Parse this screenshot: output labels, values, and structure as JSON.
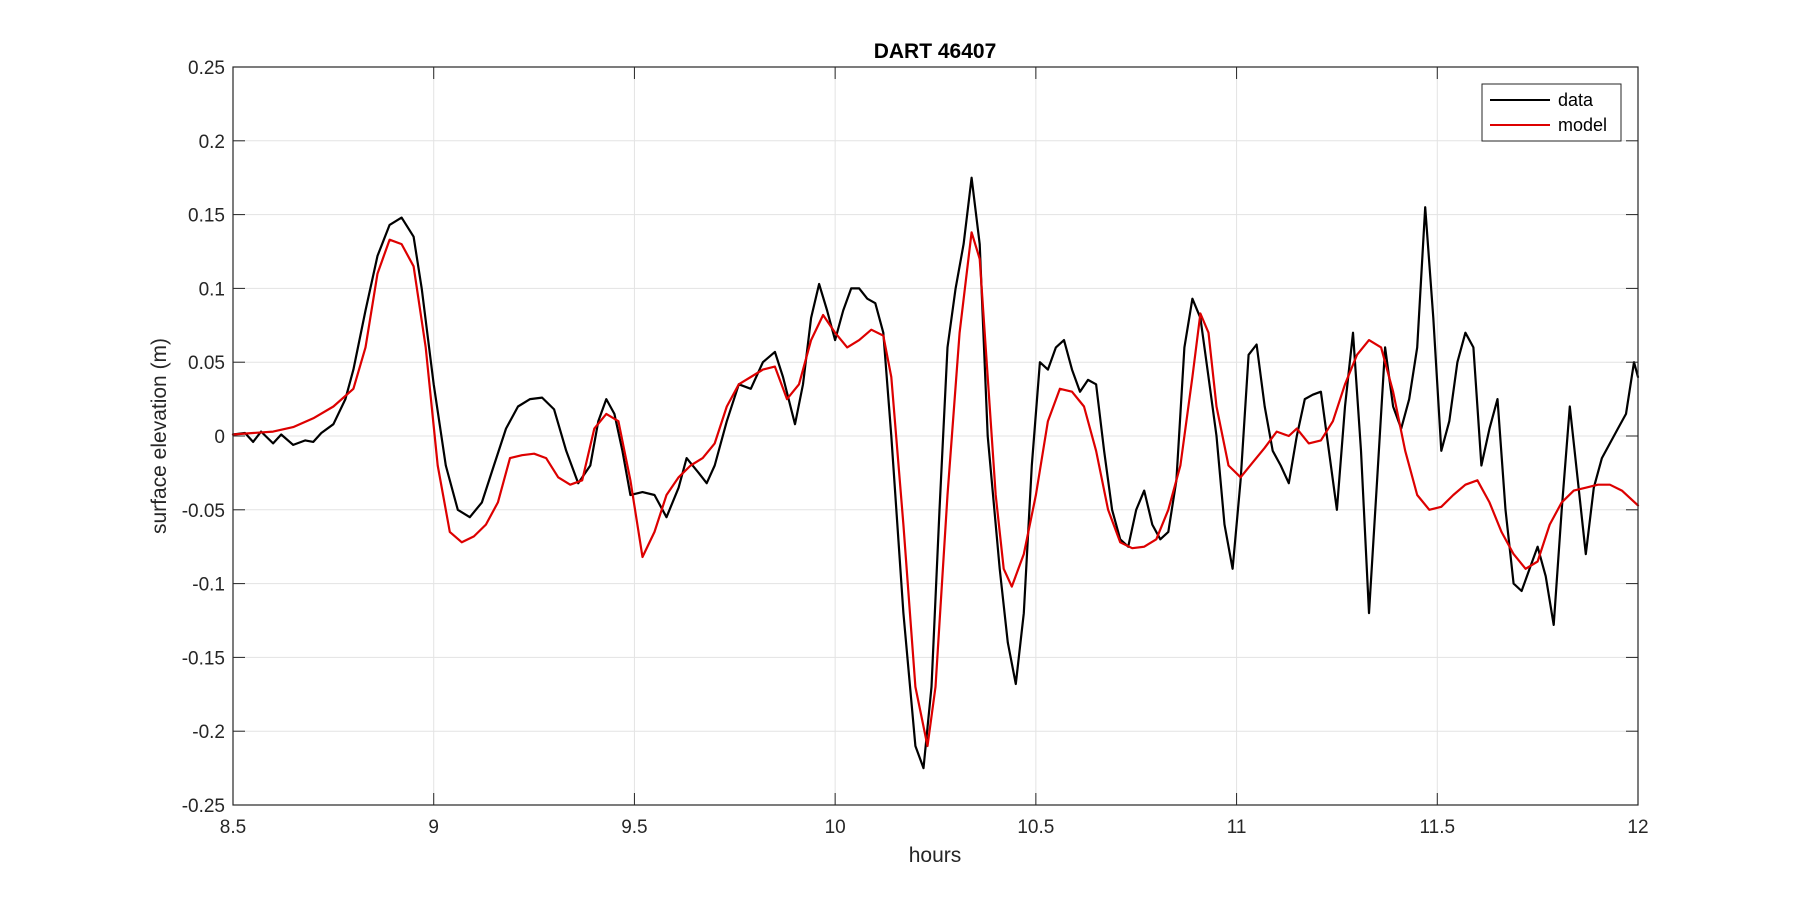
{
  "chart_data": {
    "type": "line",
    "title": "DART 46407",
    "xlabel": "hours",
    "ylabel": "surface elevation (m)",
    "xlim": [
      8.5,
      12
    ],
    "ylim": [
      -0.25,
      0.25
    ],
    "xticks": [
      8.5,
      9,
      9.5,
      10,
      10.5,
      11,
      11.5,
      12
    ],
    "xtick_labels": [
      "8.5",
      "9",
      "9.5",
      "10",
      "10.5",
      "11",
      "11.5",
      "12"
    ],
    "yticks": [
      0.25,
      0.2,
      0.15,
      0.1,
      0.05,
      0,
      -0.05,
      -0.1,
      -0.15,
      -0.2,
      -0.25
    ],
    "ytick_labels": [
      "0.25",
      "0.2",
      "0.15",
      "0.1",
      "0.05",
      "0",
      "-0.05",
      "-0.1",
      "-0.15",
      "-0.2",
      "-0.25"
    ],
    "grid": true,
    "legend_position": "top-right",
    "series": [
      {
        "name": "data",
        "color": "#000000",
        "points": [
          [
            8.5,
            0.001
          ],
          [
            8.53,
            0.002
          ],
          [
            8.55,
            -0.004
          ],
          [
            8.57,
            0.003
          ],
          [
            8.6,
            -0.005
          ],
          [
            8.62,
            0.001
          ],
          [
            8.65,
            -0.006
          ],
          [
            8.68,
            -0.003
          ],
          [
            8.7,
            -0.004
          ],
          [
            8.72,
            0.002
          ],
          [
            8.75,
            0.008
          ],
          [
            8.78,
            0.025
          ],
          [
            8.8,
            0.045
          ],
          [
            8.83,
            0.085
          ],
          [
            8.86,
            0.122
          ],
          [
            8.89,
            0.143
          ],
          [
            8.92,
            0.148
          ],
          [
            8.95,
            0.135
          ],
          [
            8.97,
            0.1
          ],
          [
            9.0,
            0.035
          ],
          [
            9.03,
            -0.02
          ],
          [
            9.06,
            -0.05
          ],
          [
            9.09,
            -0.055
          ],
          [
            9.12,
            -0.045
          ],
          [
            9.15,
            -0.02
          ],
          [
            9.18,
            0.005
          ],
          [
            9.21,
            0.02
          ],
          [
            9.24,
            0.025
          ],
          [
            9.27,
            0.026
          ],
          [
            9.3,
            0.018
          ],
          [
            9.33,
            -0.01
          ],
          [
            9.36,
            -0.032
          ],
          [
            9.39,
            -0.02
          ],
          [
            9.41,
            0.01
          ],
          [
            9.43,
            0.025
          ],
          [
            9.45,
            0.015
          ],
          [
            9.47,
            -0.01
          ],
          [
            9.49,
            -0.04
          ],
          [
            9.52,
            -0.038
          ],
          [
            9.55,
            -0.04
          ],
          [
            9.58,
            -0.055
          ],
          [
            9.61,
            -0.035
          ],
          [
            9.63,
            -0.015
          ],
          [
            9.66,
            -0.025
          ],
          [
            9.68,
            -0.032
          ],
          [
            9.7,
            -0.02
          ],
          [
            9.73,
            0.01
          ],
          [
            9.76,
            0.035
          ],
          [
            9.79,
            0.032
          ],
          [
            9.82,
            0.05
          ],
          [
            9.85,
            0.057
          ],
          [
            9.87,
            0.04
          ],
          [
            9.9,
            0.008
          ],
          [
            9.92,
            0.035
          ],
          [
            9.94,
            0.08
          ],
          [
            9.96,
            0.103
          ],
          [
            9.98,
            0.085
          ],
          [
            10.0,
            0.065
          ],
          [
            10.02,
            0.085
          ],
          [
            10.04,
            0.1
          ],
          [
            10.06,
            0.1
          ],
          [
            10.08,
            0.093
          ],
          [
            10.1,
            0.09
          ],
          [
            10.12,
            0.07
          ],
          [
            10.14,
            0.0
          ],
          [
            10.17,
            -0.12
          ],
          [
            10.2,
            -0.21
          ],
          [
            10.22,
            -0.225
          ],
          [
            10.24,
            -0.17
          ],
          [
            10.26,
            -0.05
          ],
          [
            10.28,
            0.06
          ],
          [
            10.3,
            0.1
          ],
          [
            10.32,
            0.13
          ],
          [
            10.34,
            0.175
          ],
          [
            10.36,
            0.13
          ],
          [
            10.38,
            0.0
          ],
          [
            10.41,
            -0.09
          ],
          [
            10.43,
            -0.14
          ],
          [
            10.45,
            -0.168
          ],
          [
            10.47,
            -0.12
          ],
          [
            10.49,
            -0.02
          ],
          [
            10.51,
            0.05
          ],
          [
            10.53,
            0.045
          ],
          [
            10.55,
            0.06
          ],
          [
            10.57,
            0.065
          ],
          [
            10.59,
            0.045
          ],
          [
            10.61,
            0.03
          ],
          [
            10.63,
            0.038
          ],
          [
            10.65,
            0.035
          ],
          [
            10.67,
            -0.01
          ],
          [
            10.69,
            -0.05
          ],
          [
            10.71,
            -0.07
          ],
          [
            10.73,
            -0.075
          ],
          [
            10.75,
            -0.05
          ],
          [
            10.77,
            -0.037
          ],
          [
            10.79,
            -0.06
          ],
          [
            10.81,
            -0.07
          ],
          [
            10.83,
            -0.065
          ],
          [
            10.85,
            -0.03
          ],
          [
            10.87,
            0.06
          ],
          [
            10.89,
            0.093
          ],
          [
            10.91,
            0.08
          ],
          [
            10.93,
            0.04
          ],
          [
            10.95,
            0.0
          ],
          [
            10.97,
            -0.06
          ],
          [
            10.99,
            -0.09
          ],
          [
            11.01,
            -0.03
          ],
          [
            11.03,
            0.055
          ],
          [
            11.05,
            0.062
          ],
          [
            11.07,
            0.02
          ],
          [
            11.09,
            -0.01
          ],
          [
            11.11,
            -0.02
          ],
          [
            11.13,
            -0.032
          ],
          [
            11.15,
            0.0
          ],
          [
            11.17,
            0.025
          ],
          [
            11.19,
            0.028
          ],
          [
            11.21,
            0.03
          ],
          [
            11.23,
            -0.01
          ],
          [
            11.25,
            -0.05
          ],
          [
            11.27,
            0.02
          ],
          [
            11.29,
            0.07
          ],
          [
            11.31,
            -0.01
          ],
          [
            11.33,
            -0.12
          ],
          [
            11.35,
            -0.03
          ],
          [
            11.37,
            0.06
          ],
          [
            11.39,
            0.02
          ],
          [
            11.41,
            0.005
          ],
          [
            11.43,
            0.025
          ],
          [
            11.45,
            0.06
          ],
          [
            11.47,
            0.155
          ],
          [
            11.49,
            0.08
          ],
          [
            11.51,
            -0.01
          ],
          [
            11.53,
            0.01
          ],
          [
            11.55,
            0.05
          ],
          [
            11.57,
            0.07
          ],
          [
            11.59,
            0.06
          ],
          [
            11.61,
            -0.02
          ],
          [
            11.63,
            0.005
          ],
          [
            11.65,
            0.025
          ],
          [
            11.67,
            -0.05
          ],
          [
            11.69,
            -0.1
          ],
          [
            11.71,
            -0.105
          ],
          [
            11.73,
            -0.09
          ],
          [
            11.75,
            -0.075
          ],
          [
            11.77,
            -0.095
          ],
          [
            11.79,
            -0.128
          ],
          [
            11.81,
            -0.05
          ],
          [
            11.83,
            0.02
          ],
          [
            11.85,
            -0.03
          ],
          [
            11.87,
            -0.08
          ],
          [
            11.89,
            -0.035
          ],
          [
            11.91,
            -0.015
          ],
          [
            11.93,
            -0.005
          ],
          [
            11.95,
            0.005
          ],
          [
            11.97,
            0.015
          ],
          [
            11.99,
            0.05
          ],
          [
            12.0,
            0.04
          ]
        ]
      },
      {
        "name": "model",
        "color": "#dd0000",
        "points": [
          [
            8.5,
            0.001
          ],
          [
            8.55,
            0.002
          ],
          [
            8.6,
            0.003
          ],
          [
            8.65,
            0.006
          ],
          [
            8.7,
            0.012
          ],
          [
            8.75,
            0.02
          ],
          [
            8.8,
            0.032
          ],
          [
            8.83,
            0.06
          ],
          [
            8.86,
            0.11
          ],
          [
            8.89,
            0.133
          ],
          [
            8.92,
            0.13
          ],
          [
            8.95,
            0.115
          ],
          [
            8.98,
            0.06
          ],
          [
            9.01,
            -0.02
          ],
          [
            9.04,
            -0.065
          ],
          [
            9.07,
            -0.072
          ],
          [
            9.1,
            -0.068
          ],
          [
            9.13,
            -0.06
          ],
          [
            9.16,
            -0.045
          ],
          [
            9.19,
            -0.015
          ],
          [
            9.22,
            -0.013
          ],
          [
            9.25,
            -0.012
          ],
          [
            9.28,
            -0.015
          ],
          [
            9.31,
            -0.028
          ],
          [
            9.34,
            -0.033
          ],
          [
            9.37,
            -0.03
          ],
          [
            9.4,
            0.005
          ],
          [
            9.43,
            0.015
          ],
          [
            9.46,
            0.01
          ],
          [
            9.49,
            -0.03
          ],
          [
            9.52,
            -0.082
          ],
          [
            9.55,
            -0.065
          ],
          [
            9.58,
            -0.04
          ],
          [
            9.61,
            -0.028
          ],
          [
            9.64,
            -0.02
          ],
          [
            9.67,
            -0.015
          ],
          [
            9.7,
            -0.005
          ],
          [
            9.73,
            0.02
          ],
          [
            9.76,
            0.035
          ],
          [
            9.79,
            0.04
          ],
          [
            9.82,
            0.045
          ],
          [
            9.85,
            0.047
          ],
          [
            9.88,
            0.025
          ],
          [
            9.91,
            0.035
          ],
          [
            9.94,
            0.065
          ],
          [
            9.97,
            0.082
          ],
          [
            10.0,
            0.07
          ],
          [
            10.03,
            0.06
          ],
          [
            10.06,
            0.065
          ],
          [
            10.09,
            0.072
          ],
          [
            10.12,
            0.068
          ],
          [
            10.14,
            0.04
          ],
          [
            10.17,
            -0.06
          ],
          [
            10.2,
            -0.17
          ],
          [
            10.23,
            -0.21
          ],
          [
            10.25,
            -0.17
          ],
          [
            10.28,
            -0.04
          ],
          [
            10.31,
            0.07
          ],
          [
            10.34,
            0.138
          ],
          [
            10.36,
            0.12
          ],
          [
            10.38,
            0.04
          ],
          [
            10.4,
            -0.04
          ],
          [
            10.42,
            -0.09
          ],
          [
            10.44,
            -0.102
          ],
          [
            10.47,
            -0.08
          ],
          [
            10.5,
            -0.04
          ],
          [
            10.53,
            0.01
          ],
          [
            10.56,
            0.032
          ],
          [
            10.59,
            0.03
          ],
          [
            10.62,
            0.02
          ],
          [
            10.65,
            -0.01
          ],
          [
            10.68,
            -0.05
          ],
          [
            10.71,
            -0.072
          ],
          [
            10.74,
            -0.076
          ],
          [
            10.77,
            -0.075
          ],
          [
            10.8,
            -0.07
          ],
          [
            10.83,
            -0.05
          ],
          [
            10.86,
            -0.02
          ],
          [
            10.89,
            0.04
          ],
          [
            10.91,
            0.083
          ],
          [
            10.93,
            0.07
          ],
          [
            10.95,
            0.02
          ],
          [
            10.98,
            -0.02
          ],
          [
            11.01,
            -0.028
          ],
          [
            11.04,
            -0.018
          ],
          [
            11.07,
            -0.008
          ],
          [
            11.1,
            0.003
          ],
          [
            11.13,
            0.0
          ],
          [
            11.15,
            0.005
          ],
          [
            11.18,
            -0.005
          ],
          [
            11.21,
            -0.003
          ],
          [
            11.24,
            0.01
          ],
          [
            11.27,
            0.035
          ],
          [
            11.3,
            0.055
          ],
          [
            11.33,
            0.065
          ],
          [
            11.36,
            0.06
          ],
          [
            11.39,
            0.03
          ],
          [
            11.42,
            -0.01
          ],
          [
            11.45,
            -0.04
          ],
          [
            11.48,
            -0.05
          ],
          [
            11.51,
            -0.048
          ],
          [
            11.54,
            -0.04
          ],
          [
            11.57,
            -0.033
          ],
          [
            11.6,
            -0.03
          ],
          [
            11.63,
            -0.045
          ],
          [
            11.66,
            -0.065
          ],
          [
            11.69,
            -0.08
          ],
          [
            11.72,
            -0.09
          ],
          [
            11.75,
            -0.085
          ],
          [
            11.78,
            -0.06
          ],
          [
            11.81,
            -0.045
          ],
          [
            11.84,
            -0.037
          ],
          [
            11.87,
            -0.035
          ],
          [
            11.9,
            -0.033
          ],
          [
            11.93,
            -0.033
          ],
          [
            11.96,
            -0.037
          ],
          [
            12.0,
            -0.047
          ]
        ]
      }
    ]
  }
}
